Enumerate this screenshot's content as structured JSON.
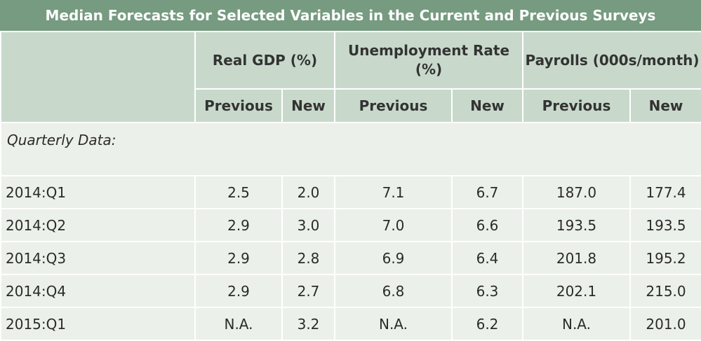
{
  "title": "Median Forecasts for Selected Variables in the Current and Previous Surveys",
  "groups": {
    "gdp": "Real GDP (%)",
    "unemployment": "Unemployment Rate (%)",
    "payrolls": "Payrolls (000s/month)"
  },
  "subheaders": [
    "Previous",
    "New",
    "Previous",
    "New",
    "Previous",
    "New"
  ],
  "section_label": "Quarterly Data:",
  "rows": [
    {
      "label": "2014:Q1",
      "values": [
        "2.5",
        "2.0",
        "7.1",
        "6.7",
        "187.0",
        "177.4"
      ]
    },
    {
      "label": "2014:Q2",
      "values": [
        "2.9",
        "3.0",
        "7.0",
        "6.6",
        "193.5",
        "193.5"
      ]
    },
    {
      "label": "2014:Q3",
      "values": [
        "2.9",
        "2.8",
        "6.9",
        "6.4",
        "201.8",
        "195.2"
      ]
    },
    {
      "label": "2014:Q4",
      "values": [
        "2.9",
        "2.7",
        "6.8",
        "6.3",
        "202.1",
        "215.0"
      ]
    },
    {
      "label": "2015:Q1",
      "values": [
        "N.A.",
        "3.2",
        "N.A.",
        "6.2",
        "N.A.",
        "201.0"
      ]
    }
  ]
}
